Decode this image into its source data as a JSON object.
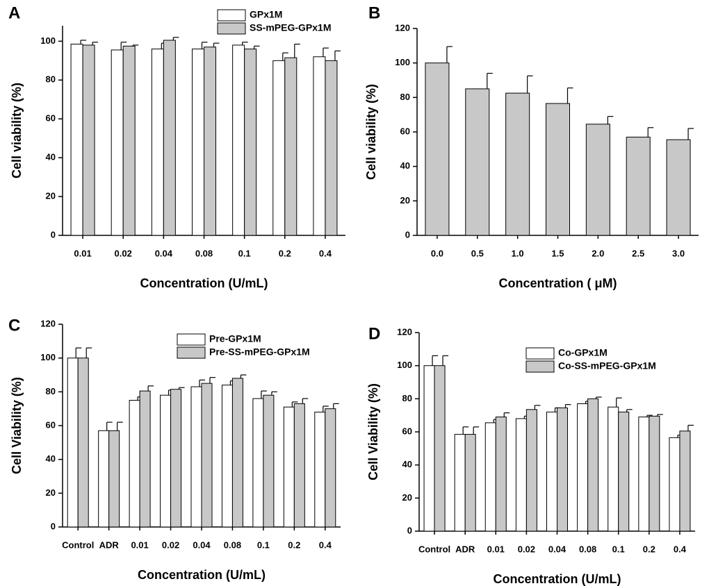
{
  "chart_data": [
    {
      "type": "bar",
      "label": "A",
      "x_label": "Concentration (U/mL)",
      "y_label": "Cell viability (%)",
      "categories": [
        "0.01",
        "0.02",
        "0.04",
        "0.08",
        "0.1",
        "0.2",
        "0.4"
      ],
      "series": [
        {
          "name": "GPx1M",
          "color": "#ffffff",
          "values": [
            98.5,
            95.5,
            96,
            96,
            98,
            90,
            92
          ],
          "errors": [
            2,
            4,
            3,
            3.5,
            1.5,
            4,
            4.5
          ]
        },
        {
          "name": "SS-mPEG-GPx1M",
          "color": "#c8c8c8",
          "values": [
            98,
            97.5,
            100.5,
            97,
            96,
            91.5,
            90
          ],
          "errors": [
            1.5,
            0.5,
            1.5,
            2,
            1.5,
            7,
            5
          ]
        }
      ],
      "ylim": [
        0,
        108
      ],
      "yticks": [
        0,
        20,
        40,
        60,
        80,
        100
      ]
    },
    {
      "type": "bar",
      "label": "B",
      "x_label": "Concentration ( μM)",
      "y_label": "Cell viability (%)",
      "categories": [
        "0.0",
        "0.5",
        "1.0",
        "1.5",
        "2.0",
        "2.5",
        "3.0"
      ],
      "color": "#c8c8c8",
      "values": [
        100,
        85,
        82.5,
        76.5,
        64.5,
        57,
        55.5
      ],
      "errors": [
        9.5,
        9,
        10,
        9,
        4.5,
        5.5,
        6.5
      ],
      "ylim": [
        0,
        120
      ],
      "yticks": [
        0,
        20,
        40,
        60,
        80,
        100,
        120
      ]
    },
    {
      "type": "bar",
      "label": "C",
      "x_label": "Concentration (U/mL)",
      "y_label": "Cell Viability (%)",
      "categories": [
        "Control",
        "ADR",
        "0.01",
        "0.02",
        "0.04",
        "0.08",
        "0.1",
        "0.2",
        "0.4"
      ],
      "series": [
        {
          "name": "Pre-GPx1M",
          "color": "#ffffff",
          "values": [
            100,
            57,
            75,
            78,
            83,
            84,
            76,
            71,
            68
          ],
          "errors": [
            6,
            5,
            2,
            3,
            4,
            2.5,
            4.5,
            3,
            3.5
          ]
        },
        {
          "name": "Pre-SS-mPEG-GPx1M",
          "color": "#c8c8c8",
          "values": [
            100,
            57,
            80.5,
            81.5,
            85,
            88,
            78,
            73,
            70
          ],
          "errors": [
            6,
            5,
            3,
            1,
            3.5,
            2,
            2,
            3,
            3
          ]
        }
      ],
      "ylim": [
        0,
        120
      ],
      "yticks": [
        0,
        20,
        40,
        60,
        80,
        100,
        120
      ]
    },
    {
      "type": "bar",
      "label": "D",
      "x_label": "Concentration (U/mL)",
      "y_label": "Cell Viability (%)",
      "categories": [
        "Control",
        "ADR",
        "0.01",
        "0.02",
        "0.04",
        "0.08",
        "0.1",
        "0.2",
        "0.4"
      ],
      "series": [
        {
          "name": "Co-GPx1M",
          "color": "#ffffff",
          "values": [
            100,
            58.5,
            65.5,
            68,
            72,
            77,
            75,
            69,
            56.5
          ],
          "errors": [
            6,
            4.5,
            2,
            1.5,
            2.5,
            1.5,
            5.5,
            1,
            1.5
          ]
        },
        {
          "name": "Co-SS-mPEG-GPx1M",
          "color": "#c8c8c8",
          "values": [
            100,
            58.5,
            69,
            73.5,
            74.5,
            80,
            72,
            69.5,
            60.5
          ],
          "errors": [
            6,
            4.5,
            2.5,
            2.5,
            2,
            1,
            1.5,
            1,
            3.5
          ]
        }
      ],
      "ylim": [
        0,
        120
      ],
      "yticks": [
        0,
        20,
        40,
        60,
        80,
        100,
        120
      ]
    }
  ]
}
